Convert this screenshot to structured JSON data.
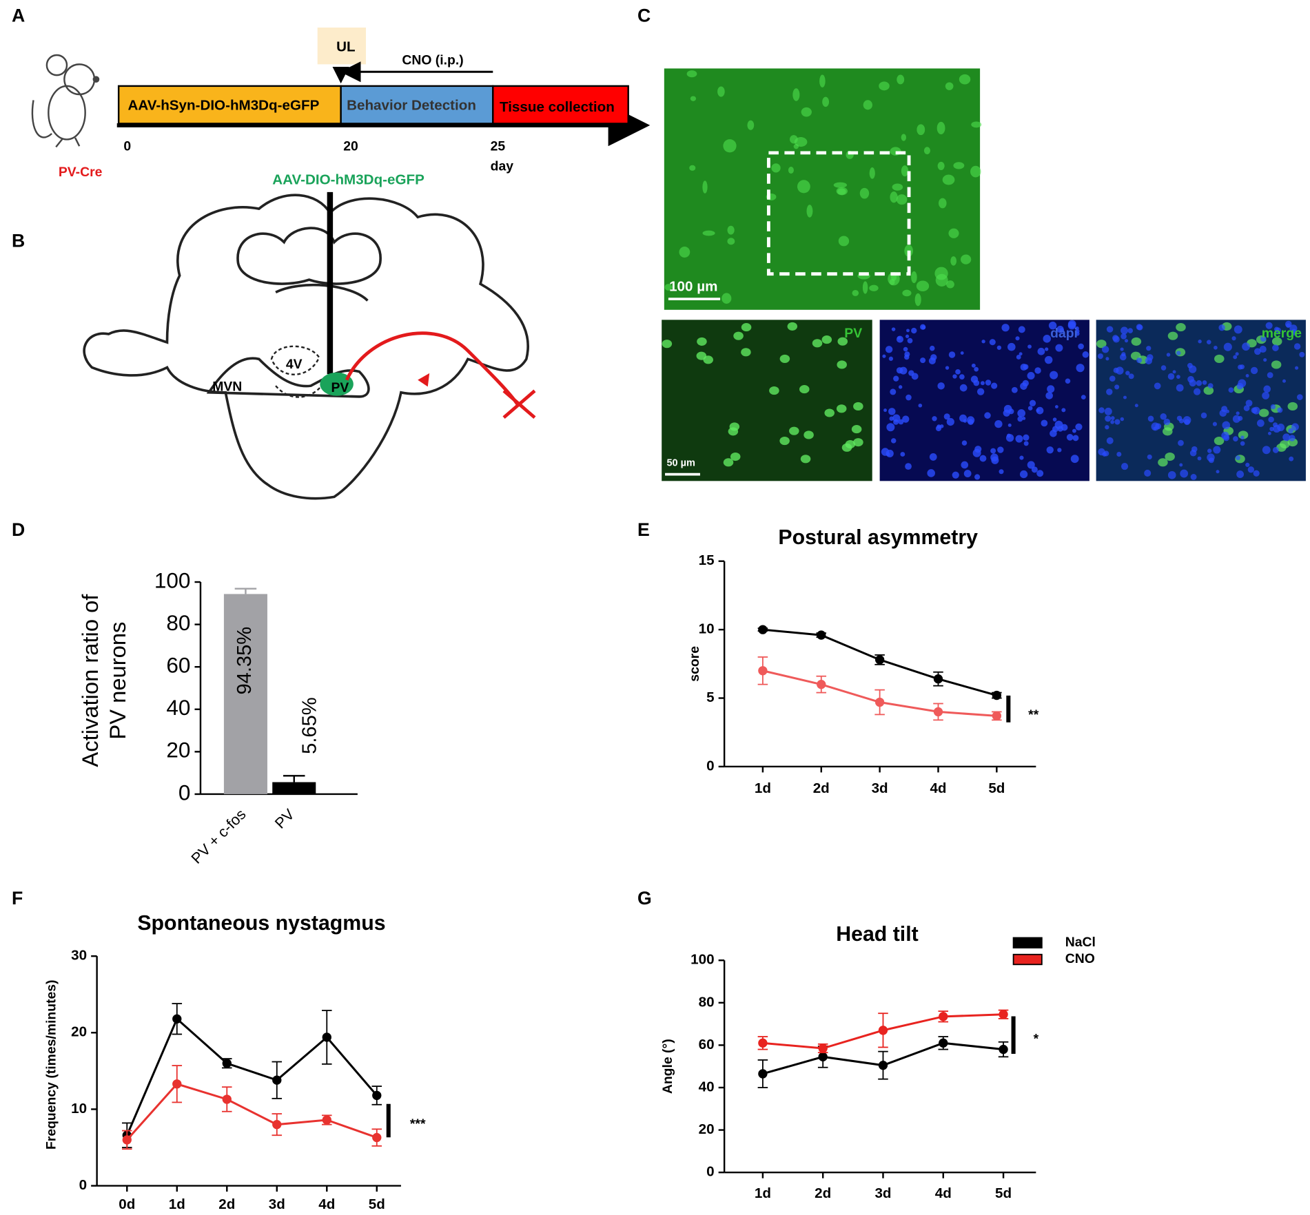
{
  "panel_labels": [
    "A",
    "B",
    "C",
    "D",
    "E",
    "F",
    "G"
  ],
  "timeline": {
    "steps": [
      "AAV-hSyn-DIO-hM3Dq-eGFP",
      "Behavior Detection",
      "Tissue collection"
    ],
    "ul": "UL",
    "cno": "CNO (i.p.)",
    "ticks": [
      "0",
      "20",
      "25"
    ],
    "unit": "day",
    "strain": "PV-Cre"
  },
  "diagram": {
    "virus": "AAV-DIO-hM3Dq-eGFP",
    "labels": [
      "4V",
      "MVN",
      "PV"
    ]
  },
  "micrograph": {
    "scale_main": "100 µm",
    "panels": [
      "PV",
      "dapi",
      "merge"
    ],
    "scale_inset": "50 µm"
  },
  "chart_data": [
    {
      "type": "bar",
      "y_label_lines": [
        "Activation ratio of",
        "PV neurons"
      ],
      "categories": [
        "PV + c-fos",
        "PV"
      ],
      "values": [
        94.35,
        5.65
      ],
      "errors": [
        2.5,
        3
      ],
      "value_labels": [
        "94.35%",
        "5.65%"
      ],
      "colors": [
        "#a2a2a6",
        "#000000"
      ],
      "ylim": [
        0,
        100
      ],
      "yticks": [
        0,
        20,
        40,
        60,
        80,
        100
      ]
    },
    {
      "type": "line",
      "title": "Postural asymmetry",
      "y_label": "score",
      "categories": [
        "1d",
        "2d",
        "3d",
        "4d",
        "5d"
      ],
      "series": [
        {
          "color": "#000000",
          "values": [
            10,
            9.6,
            7.8,
            6.4,
            5.2
          ],
          "errors": [
            0.1,
            0.15,
            0.35,
            0.5,
            0.2
          ]
        },
        {
          "color": "#ef5a5a",
          "values": [
            7,
            6,
            4.7,
            4,
            3.7
          ],
          "errors": [
            1,
            0.6,
            0.9,
            0.6,
            0.3
          ]
        }
      ],
      "ylim": [
        0,
        15
      ],
      "yticks": [
        0,
        5,
        10,
        15
      ],
      "significance": "**"
    },
    {
      "type": "line",
      "title": "Spontaneous nystagmus",
      "y_label": "Frequency (times/minutes)",
      "categories": [
        "0d",
        "1d",
        "2d",
        "3d",
        "4d",
        "5d"
      ],
      "series": [
        {
          "color": "#000000",
          "values": [
            6.6,
            21.8,
            16,
            13.8,
            19.4,
            11.8
          ],
          "errors": [
            1.6,
            2,
            0.6,
            2.4,
            3.5,
            1.2
          ]
        },
        {
          "color": "#e8322f",
          "values": [
            6,
            13.3,
            11.3,
            8,
            8.6,
            6.3
          ],
          "errors": [
            1.2,
            2.4,
            1.6,
            1.4,
            0.6,
            1.1
          ]
        }
      ],
      "ylim": [
        0,
        30
      ],
      "yticks": [
        0,
        10,
        20,
        30
      ],
      "significance": "***"
    },
    {
      "type": "line",
      "title": "Head tilt",
      "y_label": "Angle (°)",
      "categories": [
        "1d",
        "2d",
        "3d",
        "4d",
        "5d"
      ],
      "series": [
        {
          "name": "NaCl",
          "color": "#000000",
          "values": [
            46.5,
            54.5,
            50.5,
            61,
            58
          ],
          "errors": [
            6.5,
            5,
            6.5,
            3,
            3.5
          ]
        },
        {
          "name": "CNO",
          "color": "#e8231f",
          "values": [
            61,
            58.5,
            67,
            73.5,
            74.5
          ],
          "errors": [
            3,
            2,
            8,
            2.5,
            2
          ]
        }
      ],
      "ylim": [
        0,
        100
      ],
      "yticks": [
        0,
        20,
        40,
        60,
        80,
        100
      ],
      "significance": "*",
      "legend": "top-right"
    }
  ]
}
